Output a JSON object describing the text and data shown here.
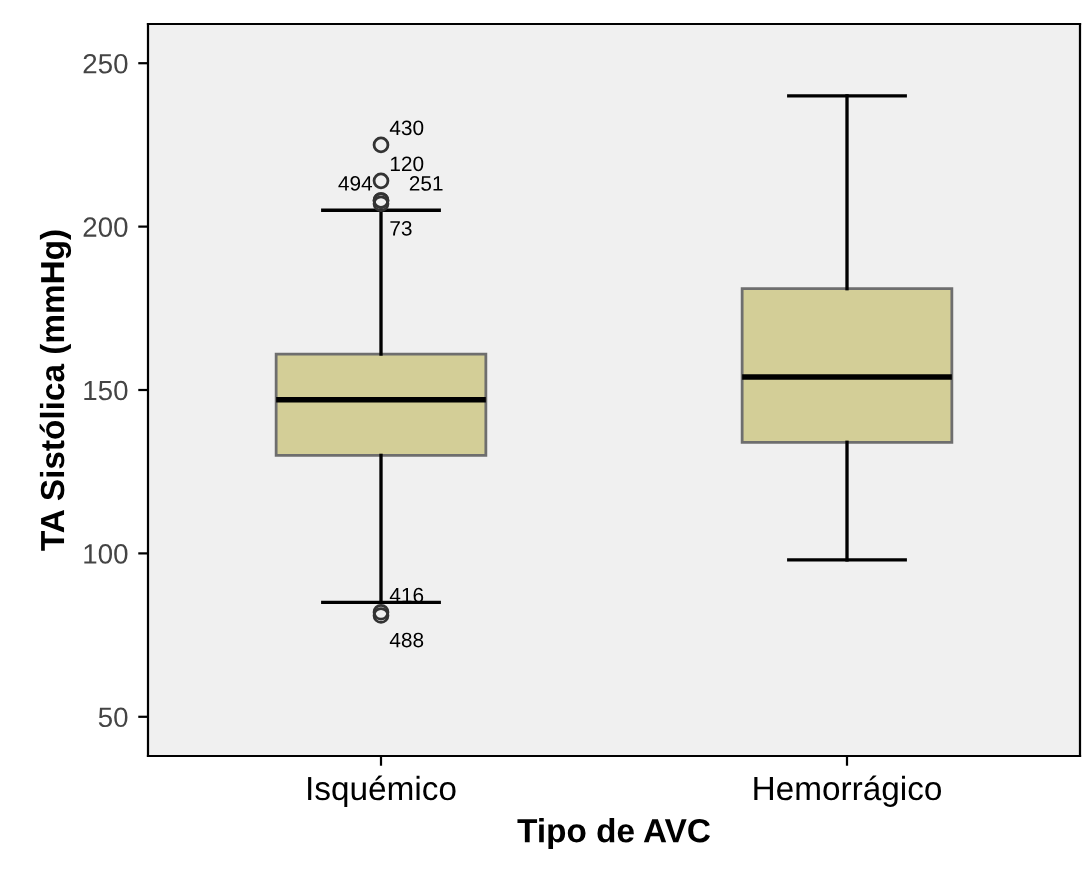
{
  "chart_data": {
    "type": "box",
    "xlabel": "Tipo de AVC",
    "ylabel": "TA Sistólica (mmHg)",
    "categories": [
      "Isquémico",
      "Hemorrágico"
    ],
    "color": "#d3ce97",
    "boxes": [
      {
        "low": 85,
        "q1": 130,
        "median": 147,
        "q3": 161,
        "high": 205,
        "outliers": [
          225,
          214,
          208,
          208,
          207,
          82,
          81
        ]
      },
      {
        "low": 98,
        "q1": 134,
        "median": 154,
        "q3": 181,
        "high": 240
      }
    ],
    "annotations": [
      "430",
      "120",
      "494",
      "251",
      "73",
      "416",
      "488"
    ],
    "ylim": [
      38,
      262
    ],
    "yticks": [
      50,
      100,
      150,
      200,
      250
    ],
    "grid": false
  }
}
